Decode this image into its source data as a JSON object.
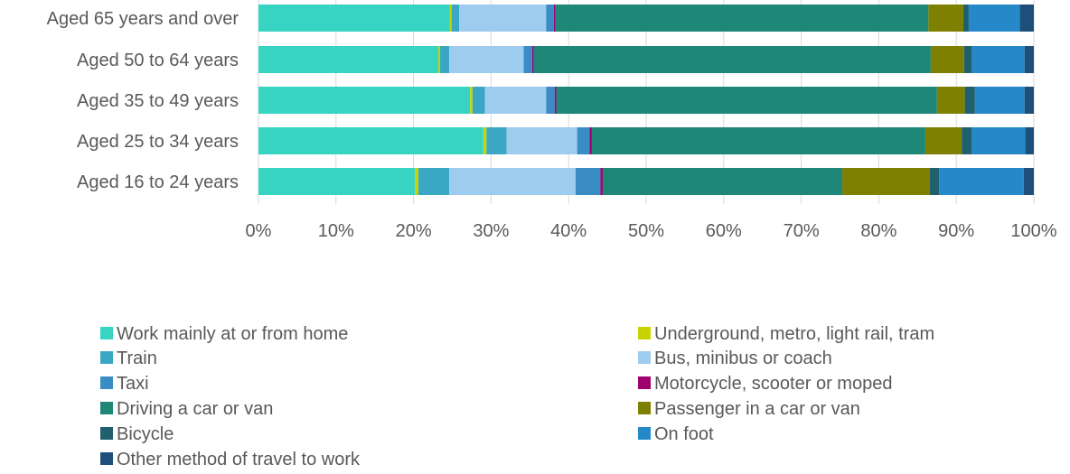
{
  "chart_data": {
    "type": "bar",
    "orientation": "horizontal",
    "stacked": "percent",
    "title": "",
    "xlabel": "",
    "ylabel": "",
    "xlim": [
      0,
      100
    ],
    "x_ticks": [
      "0%",
      "10%",
      "20%",
      "30%",
      "40%",
      "50%",
      "60%",
      "70%",
      "80%",
      "90%",
      "100%"
    ],
    "grid": "vertical",
    "legend_position": "bottom",
    "categories": [
      "Aged 65 years and over",
      "Aged 50 to 64 years",
      "Aged 35 to 49 years",
      "Aged 25 to 34 years",
      "Aged 16 to 24 years"
    ],
    "series": [
      {
        "name": "Work mainly at or from home",
        "color": "#37D4C4",
        "values": [
          24.7,
          23.2,
          27.3,
          29.0,
          20.2
        ]
      },
      {
        "name": "Underground, metro, light rail, tram",
        "color": "#C8D400",
        "values": [
          0.2,
          0.2,
          0.3,
          0.4,
          0.4
        ]
      },
      {
        "name": "Train",
        "color": "#3AA8C4",
        "values": [
          1.0,
          1.2,
          1.6,
          2.6,
          4.0
        ]
      },
      {
        "name": "Bus, minibus or coach",
        "color": "#9DCCEE",
        "values": [
          11.2,
          9.6,
          7.9,
          9.1,
          16.3
        ]
      },
      {
        "name": "Taxi",
        "color": "#3A8CC4",
        "values": [
          1.0,
          1.1,
          1.1,
          1.6,
          3.2
        ]
      },
      {
        "name": "Motorcycle, scooter or moped",
        "color": "#A0006E",
        "values": [
          0.2,
          0.2,
          0.2,
          0.3,
          0.3
        ]
      },
      {
        "name": "Driving a car or van",
        "color": "#1E8778",
        "values": [
          48.1,
          51.2,
          49.1,
          43.0,
          30.9
        ]
      },
      {
        "name": "Passenger in a car or van",
        "color": "#7D8000",
        "values": [
          4.5,
          4.3,
          3.6,
          4.7,
          11.3
        ]
      },
      {
        "name": "Bicycle",
        "color": "#1F5F6E",
        "values": [
          0.7,
          1.0,
          1.3,
          1.3,
          1.2
        ]
      },
      {
        "name": "On foot",
        "color": "#2588C8",
        "values": [
          6.6,
          6.8,
          6.4,
          6.9,
          10.9
        ]
      },
      {
        "name": "Other method of travel to work",
        "color": "#1E4F7A",
        "values": [
          1.8,
          1.2,
          1.2,
          1.1,
          1.3
        ]
      }
    ]
  }
}
